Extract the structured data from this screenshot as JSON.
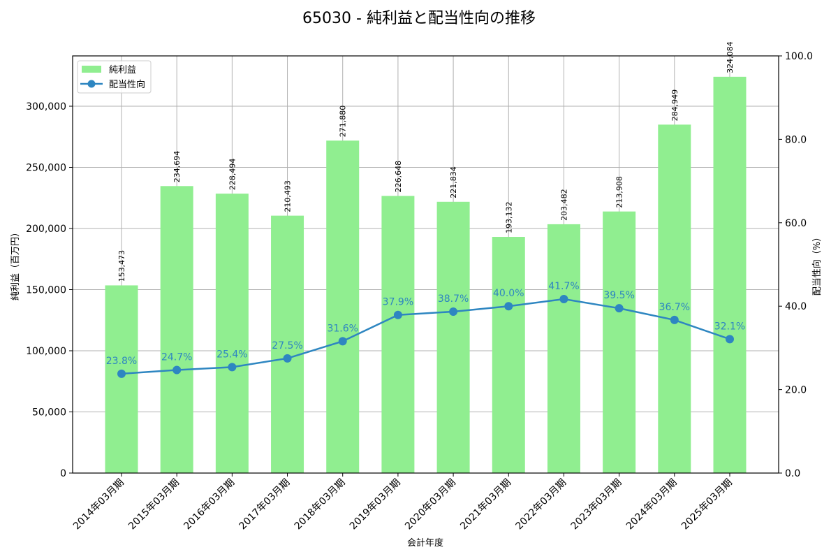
{
  "chart_data": {
    "type": "bar+line",
    "title": "65030 - 純利益と配当性向の推移",
    "xlabel": "会計年度",
    "ylabel_left": "純利益（百万円）",
    "ylabel_right": "配当性向（%）",
    "categories": [
      "2014年03月期",
      "2015年03月期",
      "2016年03月期",
      "2017年03月期",
      "2018年03月期",
      "2019年03月期",
      "2020年03月期",
      "2021年03月期",
      "2022年03月期",
      "2023年03月期",
      "2024年03月期",
      "2025年03月期"
    ],
    "series": [
      {
        "name": "純利益",
        "type": "bar",
        "axis": "left",
        "color": "#90ee90",
        "values": [
          153473,
          234694,
          228494,
          210493,
          271880,
          226648,
          221834,
          193132,
          203482,
          213908,
          284949,
          324084
        ],
        "labels": [
          "153,473",
          "234,694",
          "228,494",
          "210,493",
          "271,880",
          "226,648",
          "221,834",
          "193,132",
          "203,482",
          "213,908",
          "284,949",
          "324,084"
        ]
      },
      {
        "name": "配当性向",
        "type": "line",
        "axis": "right",
        "color": "#2e86c1",
        "values": [
          23.8,
          24.7,
          25.4,
          27.5,
          31.6,
          37.9,
          38.7,
          40.0,
          41.7,
          39.5,
          36.7,
          32.1
        ],
        "labels": [
          "23.8%",
          "24.7%",
          "25.4%",
          "27.5%",
          "31.6%",
          "37.9%",
          "38.7%",
          "40.0%",
          "41.7%",
          "39.5%",
          "36.7%",
          "32.1%"
        ]
      }
    ],
    "ylim_left": [
      0,
      341143
    ],
    "ylim_right": [
      0,
      100
    ],
    "yticks_left": [
      {
        "value": 0,
        "label": "0"
      },
      {
        "value": 50000,
        "label": "50,000"
      },
      {
        "value": 100000,
        "label": "100,000"
      },
      {
        "value": 150000,
        "label": "150,000"
      },
      {
        "value": 200000,
        "label": "200,000"
      },
      {
        "value": 250000,
        "label": "250,000"
      },
      {
        "value": 300000,
        "label": "300,000"
      }
    ],
    "yticks_right": [
      {
        "value": 0,
        "label": "0.0"
      },
      {
        "value": 20,
        "label": "20.0"
      },
      {
        "value": 40,
        "label": "40.0"
      },
      {
        "value": 60,
        "label": "60.0"
      },
      {
        "value": 80,
        "label": "80.0"
      },
      {
        "value": 100,
        "label": "100.0"
      }
    ],
    "grid": true,
    "legend_position": "upper left",
    "legend": [
      {
        "label": "純利益",
        "kind": "bar",
        "color": "#90ee90"
      },
      {
        "label": "配当性向",
        "kind": "line-marker",
        "color": "#2e86c1"
      }
    ]
  }
}
